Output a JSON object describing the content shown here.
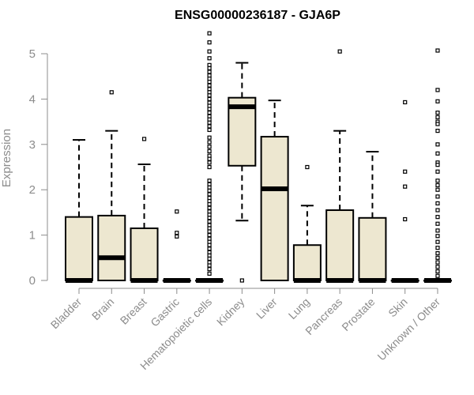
{
  "chart_data": {
    "type": "box",
    "title": "ENSG00000236187 - GJA6P",
    "xlabel": "",
    "ylabel": "Expression",
    "ylim": [
      0,
      5.5
    ],
    "y_ticks": [
      "0",
      "1",
      "2",
      "3",
      "4",
      "5"
    ],
    "grid": false,
    "colors": {
      "box_fill": "#ede7d0",
      "box_stroke": "#000000",
      "axis": "#8c8c8c"
    },
    "categories": [
      "Bladder",
      "Brain",
      "Breast",
      "Gastric",
      "Hematopoietic cells",
      "Kidney",
      "Liver",
      "Lung",
      "Pancreas",
      "Prostate",
      "Skin",
      "Unknown / Other"
    ],
    "boxes": [
      {
        "category": "Bladder",
        "min": 0,
        "q1": 0,
        "median": 0,
        "q3": 1.4,
        "max": 3.1,
        "outliers": []
      },
      {
        "category": "Brain",
        "min": 0,
        "q1": 0,
        "median": 0.5,
        "q3": 1.43,
        "max": 3.3,
        "outliers": [
          4.15
        ]
      },
      {
        "category": "Breast",
        "min": 0,
        "q1": 0,
        "median": 0,
        "q3": 1.15,
        "max": 2.56,
        "outliers": [
          3.12
        ]
      },
      {
        "category": "Gastric",
        "min": 0,
        "q1": 0,
        "median": 0,
        "q3": 0,
        "max": 0,
        "outliers": [
          1.52,
          1.05,
          0.97
        ]
      },
      {
        "category": "Hematopoietic cells",
        "min": 0,
        "q1": 0,
        "median": 0,
        "q3": 0,
        "max": 0,
        "outliers": [
          5.45,
          5.25,
          5.05,
          4.9,
          4.75,
          4.68,
          4.6,
          4.52,
          4.45,
          4.38,
          4.3,
          4.22,
          4.15,
          4.08,
          4.0,
          3.92,
          3.85,
          3.78,
          3.7,
          3.62,
          3.55,
          3.48,
          3.4,
          3.32,
          3.15,
          3.05,
          2.95,
          2.85,
          2.75,
          2.68,
          2.6,
          2.5,
          2.2,
          2.12,
          2.05,
          1.98,
          1.9,
          1.82,
          1.75,
          1.68,
          1.6,
          1.52,
          1.45,
          1.38,
          1.3,
          1.22,
          1.15,
          1.08,
          1.0,
          0.92,
          0.85,
          0.78,
          0.7,
          0.62,
          0.55,
          0.48,
          0.4,
          0.33,
          0.25,
          0.15
        ]
      },
      {
        "category": "Kidney",
        "min": 1.32,
        "q1": 2.53,
        "median": 3.83,
        "q3": 4.03,
        "max": 4.8,
        "outliers": [
          0
        ]
      },
      {
        "category": "Liver",
        "min": 0,
        "q1": 0,
        "median": 2.02,
        "q3": 3.17,
        "max": 3.97,
        "outliers": []
      },
      {
        "category": "Lung",
        "min": 0,
        "q1": 0,
        "median": 0,
        "q3": 0.78,
        "max": 1.65,
        "outliers": [
          2.5
        ]
      },
      {
        "category": "Pancreas",
        "min": 0,
        "q1": 0,
        "median": 0,
        "q3": 1.55,
        "max": 3.3,
        "outliers": [
          5.05
        ]
      },
      {
        "category": "Prostate",
        "min": 0,
        "q1": 0,
        "median": 0,
        "q3": 1.38,
        "max": 2.84,
        "outliers": []
      },
      {
        "category": "Skin",
        "min": 0,
        "q1": 0,
        "median": 0,
        "q3": 0,
        "max": 0,
        "outliers": [
          3.93,
          2.4,
          2.07,
          1.35
        ]
      },
      {
        "category": "Unknown / Other",
        "min": 0,
        "q1": 0,
        "median": 0,
        "q3": 0,
        "max": 0,
        "outliers": [
          5.07,
          4.2,
          3.95,
          3.7,
          3.6,
          3.5,
          3.45,
          3.3,
          3.0,
          2.8,
          2.6,
          2.55,
          2.4,
          2.2,
          2.1,
          2.0,
          1.85,
          1.7,
          1.55,
          1.4,
          1.25,
          1.1,
          0.98,
          0.85,
          0.72,
          0.6,
          0.5,
          0.4,
          0.3,
          0.2,
          0.1
        ]
      }
    ]
  }
}
